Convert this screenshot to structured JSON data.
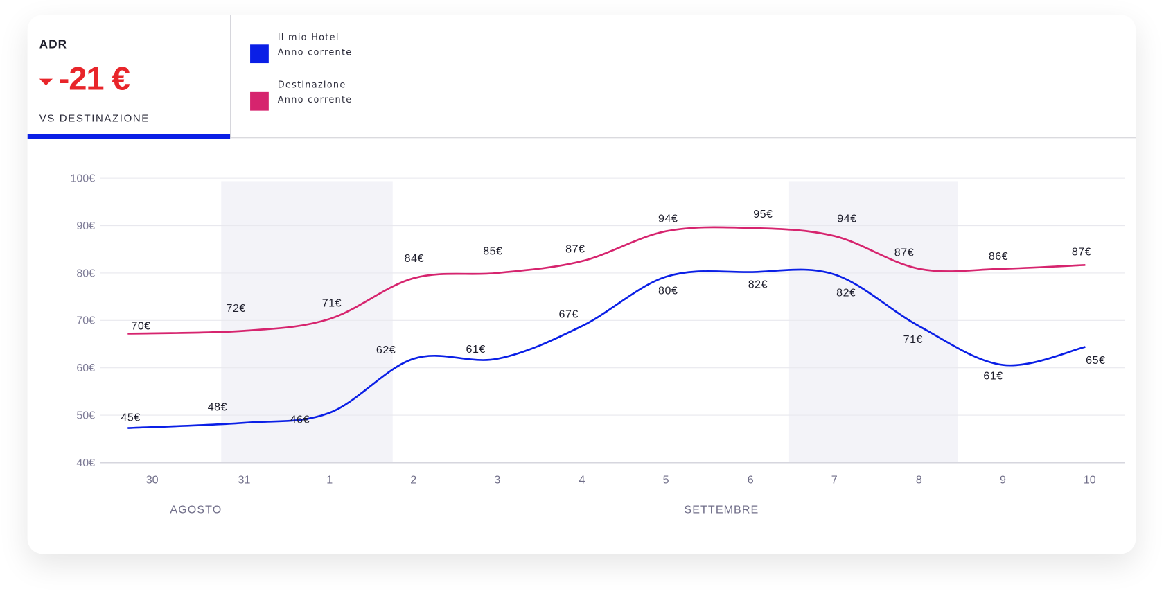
{
  "kpi": {
    "title": "ADR",
    "value": "-21 €",
    "subtitle": "VS DESTINAZIONE",
    "trend": "down",
    "color": "#e8252a"
  },
  "legend": [
    {
      "line1": "Il mio Hotel",
      "line2": "Anno corrente",
      "color": "#0a1fe6"
    },
    {
      "line1": "Destinazione",
      "line2": "Anno corrente",
      "color": "#d6246e"
    }
  ],
  "chart_data": {
    "type": "line",
    "title": "ADR",
    "categories": [
      "30",
      "31",
      "1",
      "2",
      "3",
      "4",
      "5",
      "6",
      "7",
      "8",
      "9",
      "10"
    ],
    "months": [
      {
        "label": "AGOSTO"
      },
      {
        "label": "SETTEMBRE"
      }
    ],
    "yticks": [
      "100€",
      "90€",
      "80€",
      "70€",
      "60€",
      "50€",
      "40€"
    ],
    "ylim": [
      40,
      100
    ],
    "grid": true,
    "weekend_bands": [
      [
        "31",
        "1"
      ],
      [
        "7",
        "8"
      ]
    ],
    "series": [
      {
        "name": "Il mio Hotel - Anno corrente",
        "color": "#0a1fe6",
        "values": [
          45,
          48,
          46,
          62,
          61,
          67,
          80,
          82,
          82,
          71,
          61,
          65
        ],
        "labels": [
          "45€",
          "48€",
          "46€",
          "62€",
          "61€",
          "67€",
          "80€",
          "82€",
          "82€",
          "71€",
          "61€",
          "65€"
        ],
        "line_values": [
          47.3,
          48.4,
          50.5,
          61.9,
          61.9,
          68.8,
          79.2,
          80.2,
          79.7,
          68.8,
          60.6,
          64.4
        ]
      },
      {
        "name": "Destinazione - Anno corrente",
        "color": "#d6246e",
        "values": [
          70,
          72,
          71,
          84,
          85,
          87,
          94,
          95,
          94,
          87,
          86,
          87
        ],
        "labels": [
          "70€",
          "72€",
          "71€",
          "84€",
          "85€",
          "87€",
          "94€",
          "95€",
          "94€",
          "87€",
          "86€",
          "87€"
        ],
        "line_values": [
          67.2,
          67.8,
          70.3,
          78.9,
          80,
          82.5,
          88.8,
          89.5,
          87.8,
          80.9,
          80.9,
          81.7
        ]
      }
    ]
  }
}
